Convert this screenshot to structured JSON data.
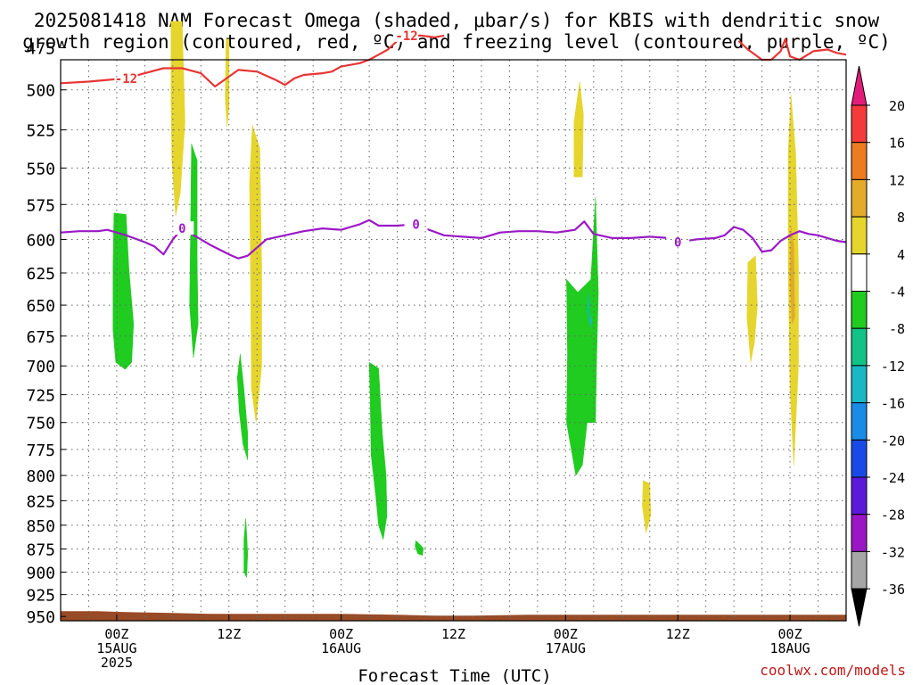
{
  "title": {
    "line1": "2025081418 NAM Forecast Omega (shaded, μbar/s) for KBIS with dendritic snow",
    "line2": "growth region (contoured, red, ºC) and freezing level (contoured, purple, ºC)"
  },
  "credit": "coolwx.com/models",
  "chart_data": {
    "type": "contour",
    "xlabel": "Forecast Time (UTC)",
    "ylabel": "",
    "x_units": "forecast hour from 2025-08-14 18Z",
    "xlim": [
      0,
      84
    ],
    "ylim": [
      482,
      955
    ],
    "y_scale": "pressure (log-p), increasing downward",
    "grid": true,
    "y_ticks": [
      475,
      500,
      525,
      550,
      575,
      600,
      625,
      650,
      675,
      700,
      725,
      750,
      775,
      800,
      825,
      850,
      875,
      900,
      925,
      950
    ],
    "x_ticks": [
      {
        "x": 6,
        "lines": [
          "00Z",
          "15AUG",
          "2025"
        ]
      },
      {
        "x": 18,
        "lines": [
          "12Z",
          "",
          ""
        ]
      },
      {
        "x": 30,
        "lines": [
          "00Z",
          "16AUG",
          ""
        ]
      },
      {
        "x": 42,
        "lines": [
          "12Z",
          "",
          ""
        ]
      },
      {
        "x": 54,
        "lines": [
          "00Z",
          "17AUG",
          ""
        ]
      },
      {
        "x": 66,
        "lines": [
          "12Z",
          "",
          ""
        ]
      },
      {
        "x": 78,
        "lines": [
          "00Z",
          "18AUG",
          ""
        ]
      }
    ],
    "colorbar": {
      "levels": [
        20,
        16,
        12,
        8,
        4,
        -4,
        -8,
        -12,
        -16,
        -20,
        -24,
        -28,
        -32,
        -36
      ],
      "colors": [
        "#f43a3a",
        "#ee7b1f",
        "#e3ab2a",
        "#e6d52d",
        "#ffffff",
        "#1fcc1f",
        "#12c286",
        "#1ab8c4",
        "#1a8ce6",
        "#1a4ae6",
        "#5b1ad9",
        "#9b17c6",
        "#a6a6a6"
      ],
      "top_color": "#e31c79",
      "bottom_color": "#000000"
    },
    "ground": {
      "color": "#9a4a24",
      "points": [
        [
          0,
          944
        ],
        [
          4,
          944
        ],
        [
          7,
          945
        ],
        [
          12,
          946
        ],
        [
          16,
          947
        ],
        [
          30,
          947
        ],
        [
          36,
          948
        ],
        [
          40,
          949
        ],
        [
          44,
          949
        ],
        [
          50,
          948
        ],
        [
          60,
          948
        ],
        [
          70,
          948
        ],
        [
          84,
          948
        ]
      ]
    },
    "series": [
      {
        "name": "-12",
        "color": "#e83535",
        "labels": [
          [
            7,
            493
          ],
          [
            37,
            468
          ]
        ],
        "points": [
          [
            0,
            496
          ],
          [
            3,
            495
          ],
          [
            5,
            494
          ],
          [
            7,
            493
          ],
          [
            9,
            490
          ],
          [
            11,
            487
          ],
          [
            13,
            487
          ],
          [
            15,
            490
          ],
          [
            16.5,
            498
          ],
          [
            18,
            492
          ],
          [
            19,
            488
          ],
          [
            21,
            489
          ],
          [
            23,
            494
          ],
          [
            24,
            497
          ],
          [
            25,
            493
          ],
          [
            26,
            491
          ],
          [
            28,
            490
          ],
          [
            29,
            489
          ],
          [
            30,
            486
          ],
          [
            31,
            485
          ],
          [
            32,
            484
          ],
          [
            33,
            482
          ],
          [
            34,
            479
          ],
          [
            35,
            476
          ],
          [
            36,
            471
          ],
          [
            37,
            468
          ],
          [
            38.5,
            468
          ],
          [
            40,
            469
          ],
          [
            41,
            468
          ]
        ]
      },
      {
        "name": "-12 (late)",
        "color": "#e83535",
        "points": [
          [
            72.5,
            471
          ],
          [
            73.5,
            476
          ],
          [
            75,
            482
          ],
          [
            76,
            482
          ],
          [
            77,
            477
          ],
          [
            77.5,
            470
          ],
          [
            78,
            480
          ],
          [
            79,
            482
          ],
          [
            80.5,
            477
          ],
          [
            82,
            476
          ],
          [
            83,
            478
          ],
          [
            84,
            479
          ]
        ]
      },
      {
        "name": "0",
        "color": "#9b18c8",
        "labels": [
          [
            13,
            592
          ],
          [
            38,
            589
          ],
          [
            66,
            602
          ]
        ],
        "points": [
          [
            0,
            595
          ],
          [
            2,
            594
          ],
          [
            4,
            594
          ],
          [
            5,
            593
          ],
          [
            7,
            597
          ],
          [
            9,
            602
          ],
          [
            10,
            605
          ],
          [
            11,
            611
          ],
          [
            12,
            600
          ],
          [
            13,
            592
          ],
          [
            14,
            596
          ],
          [
            16,
            604
          ],
          [
            18,
            611
          ],
          [
            19,
            614
          ],
          [
            20,
            612
          ],
          [
            21,
            606
          ],
          [
            22,
            600
          ],
          [
            24,
            597
          ],
          [
            26,
            594
          ],
          [
            28,
            592
          ],
          [
            30,
            593
          ],
          [
            31,
            591
          ],
          [
            32,
            589
          ],
          [
            33,
            586
          ],
          [
            34,
            590
          ],
          [
            36,
            590
          ],
          [
            38,
            589
          ],
          [
            39,
            592
          ],
          [
            41,
            597
          ],
          [
            43,
            598
          ],
          [
            45,
            599
          ],
          [
            47,
            595
          ],
          [
            49,
            594
          ],
          [
            51,
            594
          ],
          [
            53,
            595
          ],
          [
            55,
            593
          ],
          [
            56,
            587
          ],
          [
            57,
            596
          ],
          [
            59,
            599
          ],
          [
            61,
            599
          ],
          [
            63,
            598
          ],
          [
            65,
            599
          ],
          [
            66,
            602
          ],
          [
            68,
            600
          ],
          [
            70,
            599
          ],
          [
            71,
            597
          ],
          [
            72,
            591
          ],
          [
            73,
            593
          ],
          [
            74,
            599
          ],
          [
            75,
            609
          ],
          [
            76,
            608
          ],
          [
            77,
            601
          ],
          [
            78,
            597
          ],
          [
            79,
            594
          ],
          [
            80,
            596
          ],
          [
            81,
            597
          ],
          [
            82,
            599
          ],
          [
            83,
            601
          ],
          [
            84,
            602
          ]
        ]
      }
    ],
    "regions": [
      {
        "level": "4 to 8",
        "color": "#e6d52d",
        "points": [
          [
            11.8,
            460
          ],
          [
            13,
            460
          ],
          [
            13.3,
            520
          ],
          [
            12.8,
            567
          ],
          [
            12.3,
            583
          ],
          [
            11.9,
            545
          ],
          [
            11.8,
            505
          ]
        ]
      },
      {
        "level": "4 to 8",
        "color": "#e6d52d",
        "points": [
          [
            17.7,
            470
          ],
          [
            18,
            470
          ],
          [
            18,
            510
          ],
          [
            17.8,
            523
          ],
          [
            17.6,
            505
          ]
        ]
      },
      {
        "level": "4 to 8",
        "color": "#e6d52d",
        "points": [
          [
            20.5,
            522
          ],
          [
            21.3,
            537
          ],
          [
            21.5,
            620
          ],
          [
            21.5,
            700
          ],
          [
            20.9,
            750
          ],
          [
            20.4,
            720
          ],
          [
            20.3,
            620
          ],
          [
            20.2,
            560
          ]
        ]
      },
      {
        "level": "4 to 8",
        "color": "#e6d52d",
        "points": [
          [
            55.5,
            495
          ],
          [
            55.9,
            515
          ],
          [
            55.8,
            556
          ],
          [
            54.9,
            556
          ],
          [
            54.9,
            520
          ]
        ]
      },
      {
        "level": "4 to 8",
        "color": "#e6d52d",
        "points": [
          [
            73.5,
            617
          ],
          [
            74.3,
            612
          ],
          [
            74.5,
            650
          ],
          [
            74.2,
            680
          ],
          [
            73.8,
            697
          ],
          [
            73.4,
            660
          ]
        ]
      },
      {
        "level": "4 to 8",
        "color": "#e6d52d",
        "points": [
          [
            78.1,
            503
          ],
          [
            78.6,
            540
          ],
          [
            78.9,
            620
          ],
          [
            78.9,
            700
          ],
          [
            78.4,
            790
          ],
          [
            78.0,
            720
          ],
          [
            77.8,
            620
          ],
          [
            77.8,
            540
          ]
        ]
      },
      {
        "level": "4 to 8",
        "color": "#e6d52d",
        "points": [
          [
            62.3,
            805
          ],
          [
            63.0,
            808
          ],
          [
            63.1,
            840
          ],
          [
            62.6,
            858
          ],
          [
            62.2,
            830
          ]
        ]
      },
      {
        "level": "8 to 12",
        "color": "#e3ab2a",
        "points": [
          [
            78.1,
            590
          ],
          [
            78.4,
            605
          ],
          [
            78.5,
            660
          ],
          [
            78.2,
            665
          ],
          [
            78.0,
            630
          ]
        ]
      },
      {
        "level": "-4 to -8",
        "color": "#1fcc1f",
        "points": [
          [
            5.7,
            581
          ],
          [
            7,
            582
          ],
          [
            7.3,
            622
          ],
          [
            7.8,
            665
          ],
          [
            7.6,
            697
          ],
          [
            6.9,
            703
          ],
          [
            5.9,
            697
          ],
          [
            5.6,
            670
          ],
          [
            5.6,
            622
          ]
        ]
      },
      {
        "level": "-4 to -8",
        "color": "#1fcc1f",
        "points": [
          [
            14.0,
            534
          ],
          [
            14.6,
            545
          ],
          [
            14.6,
            615
          ],
          [
            14.7,
            665
          ],
          [
            14.2,
            693
          ],
          [
            13.8,
            650
          ],
          [
            13.9,
            590
          ]
        ]
      },
      {
        "level": "-4 to -8",
        "color": "#1fcc1f",
        "points": [
          [
            19.2,
            690
          ],
          [
            19.6,
            720
          ],
          [
            20.0,
            760
          ],
          [
            20.0,
            785
          ],
          [
            19.5,
            770
          ],
          [
            19.1,
            740
          ],
          [
            18.9,
            710
          ]
        ]
      },
      {
        "level": "-4 to -8",
        "color": "#1fcc1f",
        "points": [
          [
            19.8,
            843
          ],
          [
            20.0,
            880
          ],
          [
            19.9,
            906
          ],
          [
            19.6,
            900
          ],
          [
            19.6,
            865
          ]
        ]
      },
      {
        "level": "-4 to -8",
        "color": "#1fcc1f",
        "points": [
          [
            33.0,
            697
          ],
          [
            34.0,
            702
          ],
          [
            34.4,
            760
          ],
          [
            34.8,
            800
          ],
          [
            34.9,
            840
          ],
          [
            34.5,
            865
          ],
          [
            34.0,
            850
          ],
          [
            33.7,
            820
          ],
          [
            33.2,
            780
          ],
          [
            33.1,
            730
          ]
        ]
      },
      {
        "level": "-4 to -8",
        "color": "#1fcc1f",
        "points": [
          [
            38.0,
            866
          ],
          [
            38.8,
            874
          ],
          [
            38.7,
            882
          ],
          [
            38.2,
            880
          ],
          [
            37.9,
            872
          ]
        ]
      },
      {
        "level": "-4 to -8",
        "color": "#1fcc1f",
        "points": [
          [
            54.1,
            630
          ],
          [
            55.3,
            640
          ],
          [
            56.7,
            630
          ],
          [
            57.2,
            570
          ],
          [
            57.5,
            640
          ],
          [
            57.3,
            700
          ],
          [
            57.2,
            750
          ],
          [
            56.3,
            750
          ],
          [
            55.8,
            790
          ],
          [
            55.1,
            800
          ],
          [
            54.1,
            750
          ],
          [
            54.2,
            690
          ]
        ]
      },
      {
        "level": "-8 to -12",
        "color": "#12c286",
        "points": [
          [
            56.4,
            640
          ],
          [
            56.6,
            648
          ],
          [
            56.5,
            665
          ],
          [
            56.3,
            655
          ]
        ]
      },
      {
        "level": "-12 to -16",
        "color": "#1ab8c4",
        "points": [
          [
            56.7,
            658
          ],
          [
            56.8,
            662
          ],
          [
            56.7,
            668
          ],
          [
            56.6,
            663
          ]
        ]
      }
    ]
  }
}
